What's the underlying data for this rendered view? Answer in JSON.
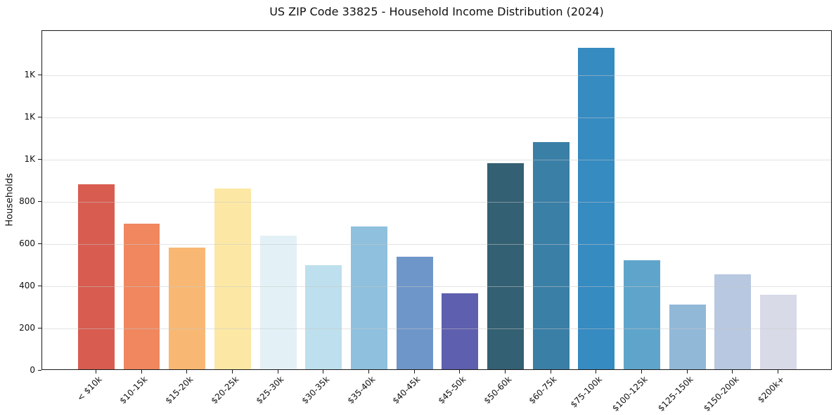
{
  "chart_data": {
    "type": "bar",
    "title": "US ZIP Code 33825 - Household Income Distribution (2024)",
    "xlabel": "",
    "ylabel": "Households",
    "categories": [
      "< $10k",
      "$10-15k",
      "$15-20k",
      "$20-25k",
      "$25-30k",
      "$30-35k",
      "$35-40k",
      "$40-45k",
      "$45-50k",
      "$50-60k",
      "$60-75k",
      "$75-100k",
      "$100-125k",
      "$125-150k",
      "$150-200k",
      "$200k+"
    ],
    "values": [
      877,
      689,
      576,
      856,
      635,
      493,
      676,
      533,
      360,
      976,
      1078,
      1524,
      518,
      306,
      450,
      354
    ],
    "bar_colors": [
      "#d85c50",
      "#f0875f",
      "#f8b873",
      "#fce8a4",
      "#e3f1f6",
      "#bedfed",
      "#8fc0dd",
      "#6e96c9",
      "#5e5fae",
      "#346073",
      "#3a7fa6",
      "#368bc1",
      "#5fa5cb",
      "#92b8d8",
      "#b7c8e0",
      "#d8dae8"
    ],
    "ylim": [
      0,
      1610
    ],
    "yticks": [
      0,
      200,
      400,
      600,
      800,
      1000,
      1200,
      1400
    ],
    "ytick_labels": [
      "0",
      "200",
      "400",
      "600",
      "800",
      "1K",
      "1K",
      "1K"
    ],
    "grid": "horizontal",
    "grid_color": "rgba(200,200,200,0.5)",
    "legend": "none",
    "background": "#ffffff",
    "spine_color": "#1a1a1a"
  }
}
